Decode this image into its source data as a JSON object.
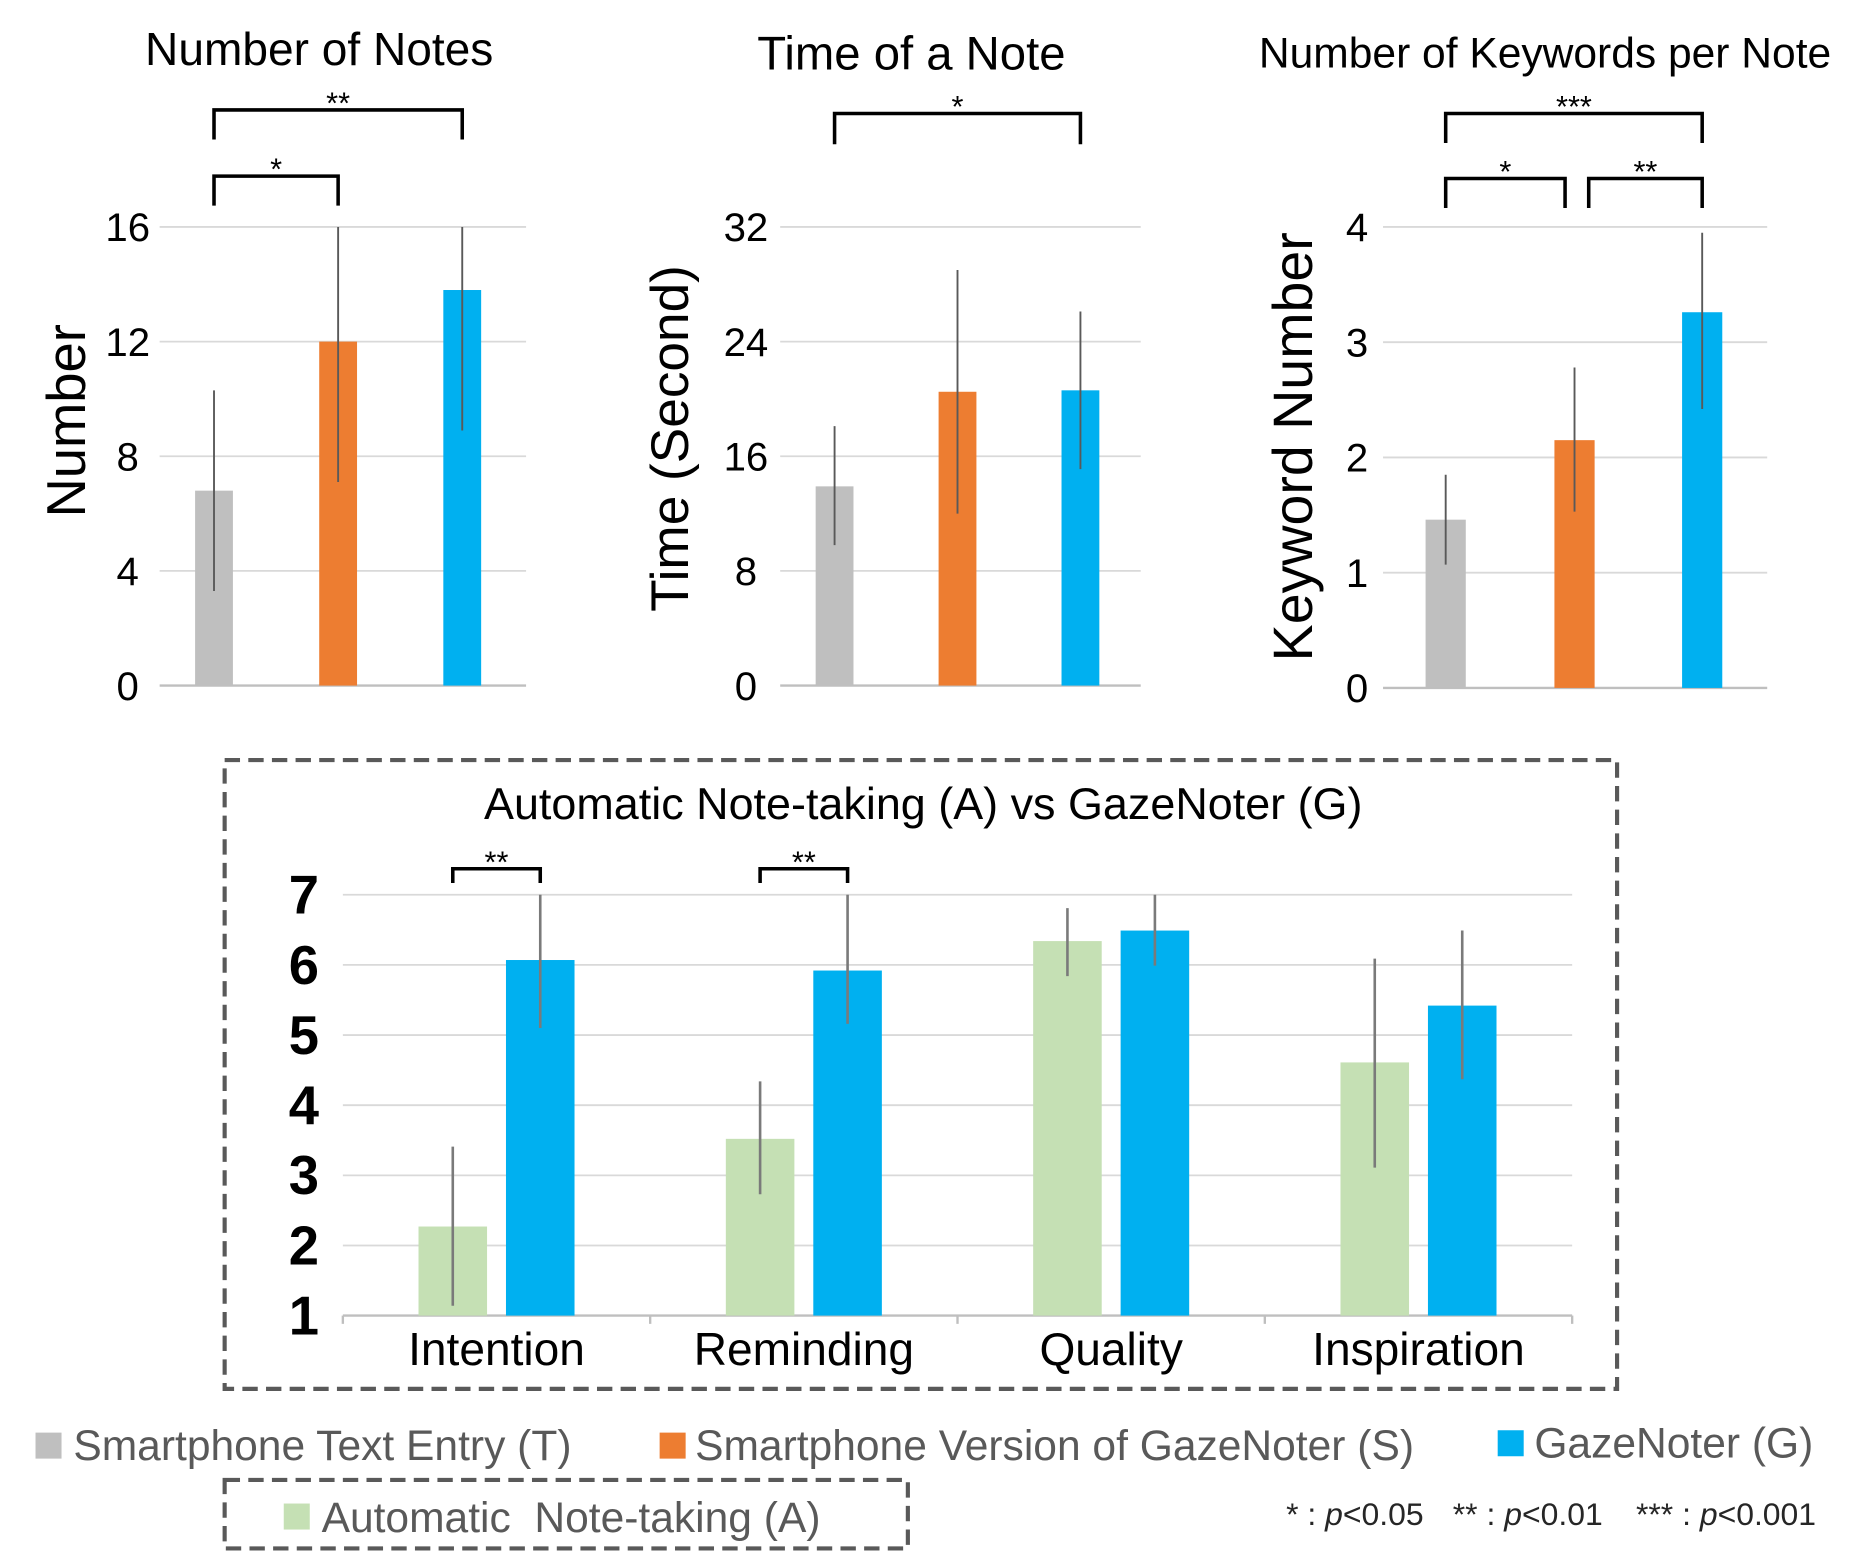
{
  "legend": {
    "items": [
      {
        "label": "Smartphone Text Entry (T)",
        "color": "#BFBFBF"
      },
      {
        "label": "Smartphone Version of GazeNoter (S)",
        "color": "#ED7D31"
      },
      {
        "label": "GazeNoter (G)",
        "color": "#00B0F0"
      },
      {
        "label": "Automatic  Note-taking (A)",
        "color": "#C5E0B4"
      }
    ],
    "significance": [
      {
        "stars": "*",
        "separator": " : ",
        "p": "p",
        "threshold": "<0.05"
      },
      {
        "stars": "**",
        "separator": " : ",
        "p": "p",
        "threshold": "<0.01"
      },
      {
        "stars": "***",
        "separator": " : ",
        "p": "p",
        "threshold": "<0.001"
      }
    ]
  },
  "chart_data": [
    {
      "type": "bar",
      "title": "Number of Notes",
      "ylabel": "Number",
      "ylim": [
        0,
        16
      ],
      "yticks": [
        0,
        4,
        8,
        12,
        16
      ],
      "grid": true,
      "bars": [
        {
          "legend_index": 0,
          "value": 6.8,
          "error_low": 3.3,
          "error_high": 10.3
        },
        {
          "legend_index": 1,
          "value": 12.0,
          "error_low": 7.1,
          "error_high": 16.0
        },
        {
          "legend_index": 2,
          "value": 13.8,
          "error_low": 8.9,
          "error_high": 16.0
        }
      ],
      "significance": [
        {
          "from": 0,
          "to": 1,
          "label": "*"
        },
        {
          "from": 0,
          "to": 2,
          "label": "**"
        }
      ]
    },
    {
      "type": "bar",
      "title": "Time of a Note",
      "ylabel": "Time (Second)",
      "ylim": [
        0,
        32
      ],
      "yticks": [
        0,
        8,
        16,
        24,
        32
      ],
      "grid": true,
      "bars": [
        {
          "legend_index": 0,
          "value": 13.9,
          "error_low": 9.8,
          "error_high": 18.1
        },
        {
          "legend_index": 1,
          "value": 20.5,
          "error_low": 12.0,
          "error_high": 29.0
        },
        {
          "legend_index": 2,
          "value": 20.6,
          "error_low": 15.1,
          "error_high": 26.1
        }
      ],
      "significance": [
        {
          "from": 0,
          "to": 2,
          "label": "*"
        }
      ]
    },
    {
      "type": "bar",
      "title": "Number of Keywords per Note",
      "ylabel": "Keyword Number",
      "ylim": [
        0,
        4
      ],
      "yticks": [
        0,
        1,
        2,
        3,
        4
      ],
      "grid": true,
      "bars": [
        {
          "legend_index": 0,
          "value": 1.46,
          "error_low": 1.07,
          "error_high": 1.85
        },
        {
          "legend_index": 1,
          "value": 2.15,
          "error_low": 1.53,
          "error_high": 2.78
        },
        {
          "legend_index": 2,
          "value": 3.26,
          "error_low": 2.42,
          "error_high": 3.95
        }
      ],
      "significance": [
        {
          "from": 0,
          "to": 1,
          "label": "*"
        },
        {
          "from": 1,
          "to": 2,
          "label": "**"
        },
        {
          "from": 0,
          "to": 2,
          "label": "***"
        }
      ]
    },
    {
      "type": "bar",
      "title": "Automatic Note-taking (A) vs GazeNoter (G)",
      "categories": [
        "Intention",
        "Reminding",
        "Quality",
        "Inspiration"
      ],
      "ylim": [
        1,
        7
      ],
      "yticks": [
        1,
        2,
        3,
        4,
        5,
        6,
        7
      ],
      "grid": true,
      "series": [
        {
          "legend_index": 3,
          "values": [
            2.27,
            3.52,
            6.34,
            4.61
          ],
          "error_low": [
            1.14,
            2.73,
            5.84,
            3.11
          ],
          "error_high": [
            3.41,
            4.34,
            6.81,
            6.09
          ]
        },
        {
          "legend_index": 2,
          "values": [
            6.07,
            5.92,
            6.49,
            5.42
          ],
          "error_low": [
            5.1,
            5.16,
            5.99,
            4.37
          ],
          "error_high": [
            7.0,
            7.0,
            7.0,
            6.49
          ]
        }
      ],
      "significance": [
        {
          "category": 0,
          "label": "**"
        },
        {
          "category": 1,
          "label": "**"
        }
      ]
    }
  ]
}
